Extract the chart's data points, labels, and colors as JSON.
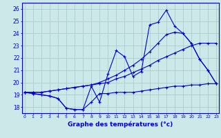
{
  "title": "Graphe des températures (°c)",
  "bg_color": "#cce8e8",
  "grid_color": "#aacccc",
  "line_color": "#0000cc",
  "ylim": [
    17.5,
    26.5
  ],
  "yticks": [
    18,
    19,
    20,
    21,
    22,
    23,
    24,
    25,
    26
  ],
  "xlim": [
    -0.3,
    23.3
  ],
  "x_labels": [
    "0",
    "1",
    "2",
    "3",
    "4",
    "5",
    "6",
    "7",
    "8",
    "9",
    "10",
    "11",
    "12",
    "13",
    "14",
    "15",
    "16",
    "17",
    "18",
    "19",
    "20",
    "21",
    "22",
    "23"
  ],
  "series": {
    "line1_actual": [
      19.2,
      19.1,
      19.0,
      18.9,
      18.7,
      17.9,
      17.8,
      17.8,
      19.7,
      18.4,
      20.7,
      22.6,
      22.1,
      20.5,
      20.9,
      24.7,
      24.9,
      25.9,
      24.6,
      24.0,
      23.2,
      21.9,
      21.0,
      19.9
    ],
    "line2_flat": [
      19.2,
      19.1,
      19.0,
      18.9,
      18.7,
      17.9,
      17.8,
      17.8,
      18.4,
      19.1,
      19.1,
      19.2,
      19.2,
      19.2,
      19.3,
      19.4,
      19.5,
      19.6,
      19.7,
      19.7,
      19.8,
      19.8,
      19.9,
      19.9
    ],
    "line3_smooth": [
      19.2,
      19.2,
      19.2,
      19.3,
      19.4,
      19.5,
      19.6,
      19.7,
      19.8,
      19.9,
      20.0,
      20.3,
      20.5,
      20.8,
      21.1,
      21.4,
      21.8,
      22.1,
      22.4,
      22.7,
      23.0,
      23.2,
      23.2,
      23.2
    ],
    "line4_peak": [
      19.2,
      19.2,
      19.2,
      19.3,
      19.4,
      19.5,
      19.6,
      19.7,
      19.8,
      20.0,
      20.3,
      20.6,
      21.0,
      21.4,
      21.9,
      22.5,
      23.2,
      23.9,
      24.1,
      24.0,
      23.2,
      21.9,
      21.0,
      19.9
    ]
  }
}
